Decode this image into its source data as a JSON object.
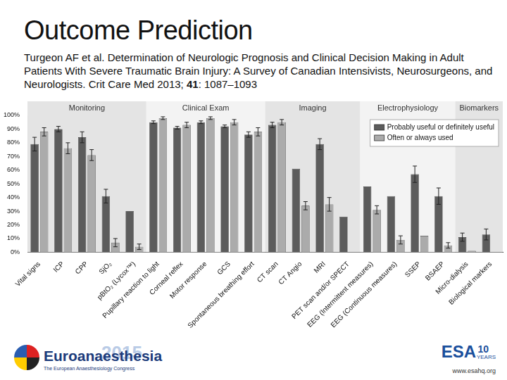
{
  "slide": {
    "title": "Outcome Prediction",
    "citation": {
      "text": "Turgeon AF et al. Determination of Neurologic Prognosis and Clinical Decision Making in Adult Patients With Severe Traumatic Brain Injury: A Survey of Canadian Intensivists, Neurosurgeons, and Neurologists. Crit Care Med 2013; ",
      "volume": "41",
      "pages": ": 1087–1093"
    },
    "footer": {
      "left": {
        "name": "Euroanaesthesia",
        "year": "2015",
        "tagline": "The European Anaesthesiology Congress"
      },
      "right": {
        "name": "ESA",
        "years": "10",
        "years_word": "YEARS",
        "url": "www.esahq.org"
      }
    }
  },
  "chart_data": {
    "type": "bar",
    "categories": [
      "Vital signs",
      "ICP",
      "CPP",
      "SjO₂",
      "pBtO₂ (Lycox™)",
      "Pupillary reaction to light",
      "Corneal reflex",
      "Motor response",
      "GCS",
      "Spontaneous breathing effort",
      "CT scan",
      "CT Angio",
      "MRI",
      "PET scan and/or SPECT",
      "EEG (Intermittent measures)",
      "EEG (Continuous measures)",
      "SSEP",
      "BSAEP",
      "Micro-dialysis",
      "Biological markers"
    ],
    "series": [
      {
        "name": "Probably useful or definitely useful",
        "color": "#5c5c5c",
        "values": [
          79,
          90,
          84,
          41,
          30,
          95,
          91,
          95,
          92,
          86,
          93,
          61,
          79,
          26,
          48,
          41,
          57,
          41,
          11,
          13
        ],
        "errors": [
          5,
          2,
          4,
          5,
          null,
          1,
          1,
          1,
          1,
          2,
          2,
          null,
          4,
          null,
          null,
          null,
          6,
          6,
          3,
          4
        ]
      },
      {
        "name": "Often or always used",
        "color": "#ababab",
        "values": [
          88,
          76,
          71,
          7,
          4,
          98,
          93,
          98,
          95,
          88,
          95,
          34,
          35,
          null,
          31,
          9,
          12,
          5,
          1,
          null
        ],
        "errors": [
          3,
          4,
          4,
          3,
          2,
          1,
          2,
          1,
          2,
          3,
          2,
          3,
          5,
          null,
          3,
          3,
          null,
          2,
          null,
          null
        ]
      }
    ],
    "sections": [
      {
        "label": "Monitoring",
        "first": "Vital signs",
        "last": "pBtO₂ (Lycox™)"
      },
      {
        "label": "Clinical Exam",
        "first": "Pupillary reaction to light",
        "last": "Spontaneous breathing effort"
      },
      {
        "label": "Imaging",
        "first": "CT scan",
        "last": "PET scan and/or SPECT"
      },
      {
        "label": "Electrophysiology",
        "first": "EEG (Intermittent measures)",
        "last": "BSAEP"
      },
      {
        "label": "Biomarkers",
        "first": "Micro-dialysis",
        "last": "Biological markers"
      }
    ],
    "ylim": [
      0,
      100
    ],
    "yticks": [
      {
        "value": 0,
        "label": "0%"
      },
      {
        "value": 10,
        "label": "10%"
      },
      {
        "value": 20,
        "label": "20%"
      },
      {
        "value": 30,
        "label": "30%"
      },
      {
        "value": 40,
        "label": "40%"
      },
      {
        "value": 50,
        "label": "50%"
      },
      {
        "value": 60,
        "label": "60%"
      },
      {
        "value": 70,
        "label": "70%"
      },
      {
        "value": 80,
        "label": "80%"
      },
      {
        "value": 90,
        "label": "90%"
      },
      {
        "value": 100,
        "label": "100%"
      }
    ],
    "grid": false,
    "legend": "upper right"
  }
}
